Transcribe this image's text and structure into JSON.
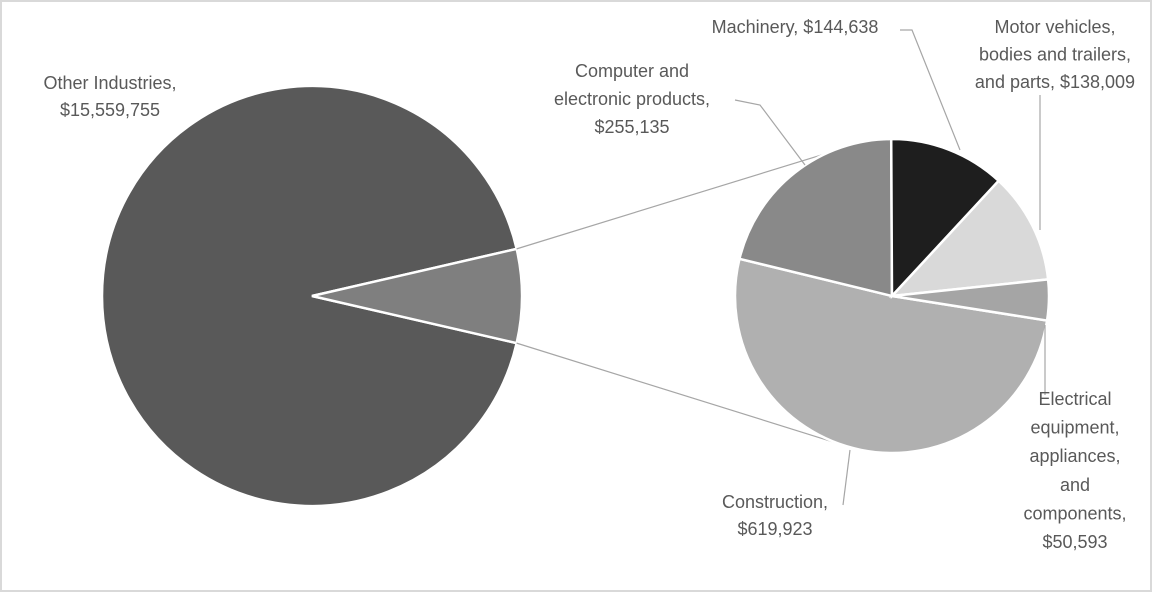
{
  "chart_data": {
    "type": "pie-of-pie",
    "categories": [
      "Other Industries",
      "Construction",
      "Computer and electronic products",
      "Machinery",
      "Motor vehicles, bodies and trailers, and parts",
      "Electrical equipment, appliances, and components"
    ],
    "values": [
      15559755,
      619923,
      255135,
      144638,
      138009,
      50593
    ],
    "value_labels": [
      [
        "Other Industries,",
        "$15,559,755"
      ],
      [
        "Construction,",
        "$619,923"
      ],
      [
        "Computer and",
        "electronic products,",
        "$255,135"
      ],
      [
        "Machinery, $144,638"
      ],
      [
        "Motor vehicles,",
        "bodies and trailers,",
        "and parts, $138,009"
      ],
      [
        "Electrical",
        "equipment,",
        "appliances,",
        "and",
        "components,",
        "$50,593"
      ]
    ],
    "colors": [
      "#595959",
      "#b0b0b0",
      "#898989",
      "#1e1e1e",
      "#d9d9d9",
      "#a5a5a5"
    ]
  }
}
